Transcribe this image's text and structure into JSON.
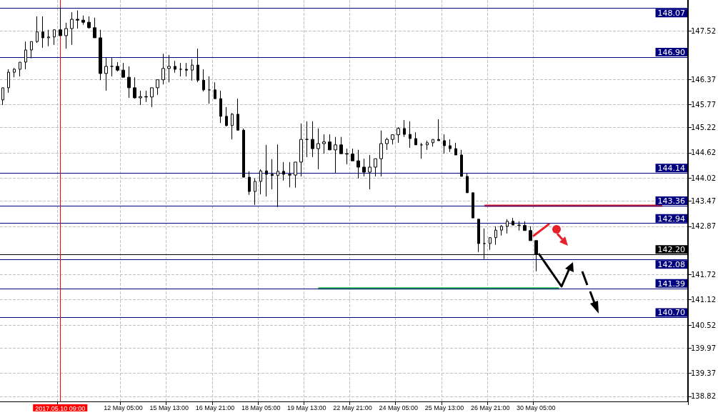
{
  "chart_data": {
    "type": "candlestick",
    "categories": [
      null,
      null,
      null,
      null,
      null,
      null,
      null,
      null,
      null,
      null,
      "2017.05.10 09:00",
      null,
      null,
      null,
      null,
      null,
      null,
      null,
      null,
      null,
      null,
      "12 May 05:00",
      null,
      null,
      null,
      null,
      null,
      null,
      null,
      "15 May 13:00",
      null,
      null,
      null,
      null,
      null,
      null,
      null,
      "16 May 21:00",
      null,
      null,
      null,
      null,
      null,
      null,
      null,
      "18 May 05:00",
      null,
      null,
      null,
      null,
      null,
      null,
      null,
      "19 May 13:00",
      null,
      null,
      null,
      null,
      null,
      null,
      null,
      "22 May 21:00",
      null,
      null,
      null,
      null,
      null,
      null,
      null,
      "24 May 05:00",
      null,
      null,
      null,
      null,
      null,
      null,
      null,
      "25 May 13:00",
      null,
      null,
      null,
      null,
      null,
      null,
      null,
      "26 May 21:00",
      null,
      null,
      null,
      null,
      null,
      null,
      null,
      "30 May 05:00",
      null,
      null,
      null,
      null,
      null,
      null,
      null,
      null,
      null,
      null,
      null,
      null,
      null,
      null,
      null,
      null,
      null,
      null,
      null,
      null,
      null,
      null,
      null,
      null,
      null,
      null
    ],
    "series": [
      {
        "color": "#000000",
        "ohlc": [
          [
            145.88,
            146.17,
            145.76,
            146.17
          ],
          [
            146.17,
            146.61,
            146.05,
            146.54
          ],
          [
            146.54,
            146.64,
            146.42,
            146.61
          ],
          [
            146.61,
            146.78,
            146.44,
            146.78
          ],
          [
            146.78,
            147.27,
            146.61,
            147.07
          ],
          [
            147.07,
            147.27,
            146.87,
            147.27
          ],
          [
            147.27,
            147.87,
            147.24,
            147.5
          ],
          [
            147.5,
            147.87,
            147.12,
            147.36
          ],
          [
            147.36,
            147.55,
            147.16,
            147.38
          ],
          [
            147.38,
            147.55,
            147.19,
            147.55
          ],
          [
            147.55,
            148.07,
            147.41,
            147.41
          ],
          [
            147.41,
            147.72,
            147.1,
            147.58
          ],
          [
            147.58,
            147.97,
            147.19,
            147.8
          ],
          [
            147.8,
            148.01,
            147.58,
            147.78
          ],
          [
            147.78,
            147.89,
            147.67,
            147.73
          ],
          [
            147.73,
            147.87,
            147.58,
            147.6
          ],
          [
            147.6,
            147.84,
            147.36,
            147.36
          ],
          [
            147.36,
            147.55,
            146.35,
            146.51
          ],
          [
            146.51,
            146.9,
            146.1,
            146.68
          ],
          [
            146.68,
            146.9,
            146.44,
            146.68
          ],
          [
            146.68,
            146.78,
            146.56,
            146.59
          ],
          [
            146.59,
            146.76,
            146.42,
            146.42
          ],
          [
            146.42,
            146.68,
            145.93,
            146.17
          ],
          [
            146.17,
            146.42,
            145.91,
            145.93
          ],
          [
            145.93,
            146.1,
            145.76,
            145.96
          ],
          [
            145.96,
            146.1,
            145.83,
            145.95
          ],
          [
            145.95,
            146.17,
            145.71,
            146.17
          ],
          [
            146.17,
            146.36,
            146.0,
            146.36
          ],
          [
            146.36,
            146.98,
            146.25,
            146.63
          ],
          [
            146.63,
            146.95,
            146.3,
            146.68
          ],
          [
            146.68,
            146.81,
            146.53,
            146.61
          ],
          [
            146.61,
            146.76,
            146.44,
            146.61
          ],
          [
            146.61,
            146.76,
            146.44,
            146.59
          ],
          [
            146.59,
            146.85,
            146.34,
            146.71
          ],
          [
            146.71,
            147.1,
            146.3,
            146.35
          ],
          [
            146.35,
            146.61,
            146.08,
            146.12
          ],
          [
            146.12,
            146.44,
            145.79,
            146.12
          ],
          [
            146.12,
            146.3,
            145.91,
            145.91
          ],
          [
            145.91,
            146.1,
            145.33,
            145.49
          ],
          [
            145.49,
            145.71,
            145.25,
            145.27
          ],
          [
            145.27,
            145.57,
            144.94,
            145.54
          ],
          [
            145.54,
            145.91,
            145.16,
            145.16
          ],
          [
            145.16,
            145.2,
            144.04,
            144.04
          ],
          [
            144.04,
            144.18,
            143.62,
            143.7
          ],
          [
            143.7,
            144.01,
            143.38,
            143.94
          ],
          [
            143.94,
            144.23,
            143.63,
            144.19
          ],
          [
            144.19,
            144.81,
            143.58,
            144.11
          ],
          [
            144.11,
            144.47,
            143.75,
            144.08
          ],
          [
            144.08,
            144.82,
            143.33,
            144.18
          ],
          [
            144.18,
            144.4,
            143.96,
            144.11
          ],
          [
            144.11,
            144.4,
            143.8,
            144.09
          ],
          [
            144.09,
            144.4,
            143.79,
            144.4
          ],
          [
            144.4,
            145.32,
            144.06,
            144.94
          ],
          [
            144.94,
            145.37,
            144.52,
            144.94
          ],
          [
            144.94,
            145.37,
            144.52,
            144.72
          ],
          [
            144.72,
            145.2,
            144.23,
            144.84
          ],
          [
            144.84,
            145.06,
            144.6,
            144.88
          ],
          [
            144.88,
            145.06,
            144.69,
            144.69
          ],
          [
            144.69,
            145.0,
            144.13,
            144.81
          ],
          [
            144.81,
            145.0,
            144.6,
            144.6
          ],
          [
            144.6,
            144.72,
            144.35,
            144.59
          ],
          [
            144.59,
            144.72,
            144.43,
            144.43
          ],
          [
            144.43,
            144.69,
            144.01,
            144.28
          ],
          [
            144.28,
            144.48,
            144.06,
            144.16
          ],
          [
            144.16,
            144.57,
            143.75,
            144.28
          ],
          [
            144.28,
            144.48,
            144.06,
            144.48
          ],
          [
            144.48,
            145.15,
            144.06,
            144.84
          ],
          [
            144.84,
            144.98,
            144.69,
            144.94
          ],
          [
            144.94,
            145.06,
            144.82,
            145.05
          ],
          [
            145.05,
            145.23,
            144.86,
            145.2
          ],
          [
            145.2,
            145.4,
            145.0,
            145.06
          ],
          [
            145.06,
            145.37,
            144.74,
            144.96
          ],
          [
            144.96,
            145.11,
            144.81,
            144.81
          ],
          [
            144.81,
            144.86,
            144.48,
            144.81
          ],
          [
            144.81,
            144.91,
            144.69,
            144.86
          ],
          [
            144.86,
            144.94,
            144.77,
            144.94
          ],
          [
            144.94,
            145.42,
            144.91,
            144.91
          ],
          [
            144.91,
            145.06,
            144.6,
            144.79
          ],
          [
            144.79,
            144.94,
            144.64,
            144.72
          ],
          [
            144.72,
            144.86,
            144.57,
            144.57
          ],
          [
            144.57,
            144.69,
            144.06,
            144.06
          ],
          [
            144.06,
            144.13,
            143.67,
            143.67
          ],
          [
            143.67,
            143.67,
            143.07,
            143.07
          ],
          [
            143.04,
            143.04,
            142.26,
            142.46
          ],
          [
            142.46,
            142.82,
            142.09,
            142.46
          ],
          [
            142.46,
            142.6,
            142.31,
            142.6
          ],
          [
            142.6,
            142.87,
            142.43,
            142.78
          ],
          [
            142.78,
            142.9,
            142.65,
            142.87
          ],
          [
            142.87,
            143.04,
            142.7,
            142.99
          ],
          [
            142.99,
            143.07,
            142.9,
            142.9
          ],
          [
            142.9,
            142.99,
            142.77,
            142.89
          ],
          [
            142.89,
            142.99,
            142.77,
            142.77
          ],
          [
            142.77,
            142.87,
            142.53,
            142.53
          ],
          [
            142.53,
            142.53,
            141.8,
            142.2
          ],
          null,
          null,
          null,
          null,
          null,
          null,
          null,
          null,
          null,
          null,
          null,
          null,
          null,
          null,
          null,
          null,
          null,
          null,
          null,
          null,
          null,
          null,
          null,
          null,
          null,
          null
        ]
      },
      {
        "type": "line",
        "color": "#22b14c",
        "values": [
          null,
          null,
          null,
          null,
          null,
          null,
          null,
          null,
          null,
          null,
          null,
          null,
          null,
          null,
          null,
          null,
          null,
          null,
          null,
          null,
          null,
          null,
          null,
          null,
          null,
          null,
          null,
          null,
          null,
          null,
          null,
          null,
          null,
          null,
          null,
          null,
          null,
          null,
          null,
          null,
          null,
          null,
          null,
          null,
          null,
          null,
          null,
          null,
          null,
          null,
          null,
          null,
          null,
          null,
          null,
          141.39,
          141.39,
          141.39,
          141.39,
          141.39,
          141.39,
          141.39,
          141.39,
          141.39,
          141.39,
          141.39,
          141.39,
          141.39,
          141.39,
          141.39,
          141.39,
          141.39,
          141.39,
          141.39,
          141.39,
          141.39,
          141.39,
          141.39,
          141.39,
          141.39,
          141.39,
          141.39,
          141.39,
          141.39,
          141.39,
          141.39,
          141.39,
          141.39,
          141.39,
          141.39,
          141.39,
          141.39,
          141.39,
          141.39,
          141.39,
          141.39,
          141.39,
          141.39,
          null,
          null,
          null,
          null,
          null,
          null,
          null,
          null,
          null,
          null,
          null,
          null,
          null,
          null,
          null,
          null,
          null,
          null,
          null,
          null,
          null,
          null
        ]
      },
      {
        "type": "line",
        "color": "#e8202a",
        "values": [
          null,
          null,
          null,
          null,
          null,
          null,
          null,
          null,
          null,
          null,
          null,
          null,
          null,
          null,
          null,
          null,
          null,
          null,
          null,
          null,
          null,
          null,
          null,
          null,
          null,
          null,
          null,
          null,
          null,
          null,
          null,
          null,
          null,
          null,
          null,
          null,
          null,
          null,
          null,
          null,
          null,
          null,
          null,
          null,
          null,
          null,
          null,
          null,
          null,
          null,
          null,
          null,
          null,
          null,
          null,
          null,
          null,
          null,
          null,
          null,
          null,
          null,
          null,
          null,
          null,
          null,
          null,
          null,
          null,
          null,
          null,
          null,
          null,
          null,
          null,
          null,
          null,
          null,
          null,
          null,
          null,
          null,
          null,
          null,
          143.36,
          143.36,
          143.36,
          143.36,
          143.36,
          143.36,
          143.36,
          143.36,
          143.36,
          143.36,
          143.36,
          143.36,
          143.36,
          143.36,
          143.36,
          143.36,
          143.36,
          143.36,
          143.36,
          143.36,
          143.36,
          143.36,
          143.36,
          143.36,
          143.36,
          143.36,
          143.36,
          143.36,
          143.36,
          143.36,
          143.36,
          143.36,
          null,
          null,
          null,
          null
        ]
      }
    ],
    "ylim": [
      138.7,
      148.26
    ],
    "yticks": [
      147.52,
      146.37,
      145.77,
      145.22,
      144.62,
      144.02,
      143.47,
      142.87,
      141.72,
      141.12,
      140.52,
      139.97,
      139.37,
      138.82
    ],
    "grid": true,
    "marker": "none",
    "ref_lines": [
      {
        "axis": "x",
        "value": "2017.05.10 09:00",
        "color": "#ff0000"
      },
      {
        "axis": "y",
        "value": 148.07,
        "label": "148.07",
        "color": "#000080"
      },
      {
        "axis": "y",
        "value": 146.9,
        "label": "146.90",
        "color": "#000080"
      },
      {
        "axis": "y",
        "value": 144.14,
        "label": "144.14",
        "color": "#000080"
      },
      {
        "axis": "y",
        "value": 143.36,
        "label": "143.36",
        "color": "#000080"
      },
      {
        "axis": "y",
        "value": 142.94,
        "label": "142.94",
        "color": "#000080"
      },
      {
        "axis": "y",
        "value": 142.2,
        "label": "142.20",
        "color": "#000000"
      },
      {
        "axis": "y",
        "value": 142.08,
        "label": "142.08",
        "color": "#000080"
      },
      {
        "axis": "y",
        "value": 141.39,
        "label": "141.39",
        "color": "#000080"
      },
      {
        "axis": "y",
        "value": 140.7,
        "label": "140.70",
        "color": "#000080"
      }
    ]
  }
}
